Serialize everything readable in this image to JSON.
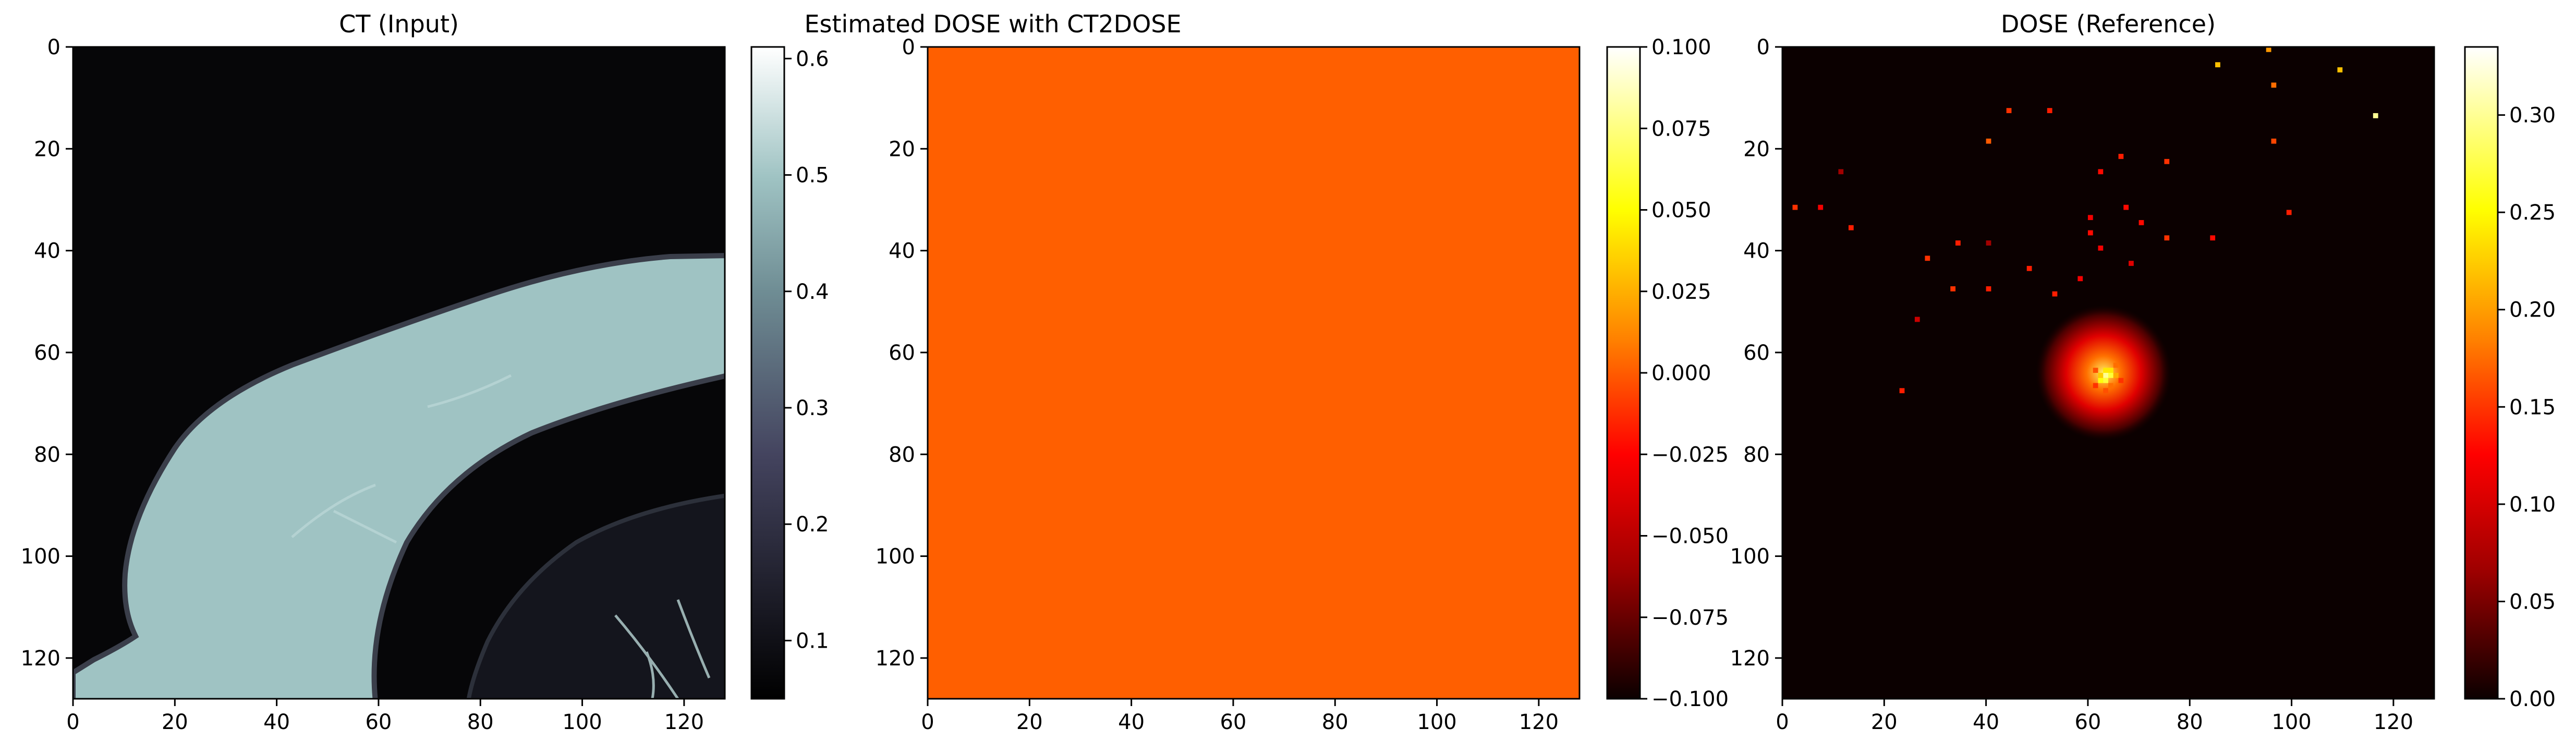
{
  "chart_data": [
    {
      "type": "heatmap",
      "title": "CT (Input)",
      "xlabel": "",
      "ylabel": "",
      "xlim": [
        0,
        128
      ],
      "ylim": [
        128,
        0
      ],
      "x_ticks": [
        0,
        20,
        40,
        60,
        80,
        100,
        120
      ],
      "y_ticks": [
        0,
        20,
        40,
        60,
        80,
        100,
        120
      ],
      "colormap": "bone",
      "grid": false,
      "colorbar": {
        "range": [
          0.05,
          0.61
        ],
        "ticks": [
          0.1,
          0.2,
          0.3,
          0.4,
          0.5,
          0.6
        ],
        "tick_labels": [
          "0.1",
          "0.2",
          "0.3",
          "0.4",
          "0.5",
          "0.6"
        ],
        "colors": [
          "#000000",
          "#44445f",
          "#6f8d94",
          "#9fc3c3",
          "#ffffff"
        ]
      },
      "background_value": 0.06,
      "tissue_value": 0.5,
      "lung_value": 0.1
    },
    {
      "type": "heatmap",
      "title": "Estimated DOSE with CT2DOSE",
      "xlabel": "",
      "ylabel": "",
      "xlim": [
        0,
        128
      ],
      "ylim": [
        128,
        0
      ],
      "x_ticks": [
        0,
        20,
        40,
        60,
        80,
        100,
        120
      ],
      "y_ticks": [
        0,
        20,
        40,
        60,
        80,
        100,
        120
      ],
      "colormap": "hot",
      "grid": false,
      "uniform_value": 0.0,
      "fill_color": "#ff5f00",
      "colorbar": {
        "range": [
          -0.1,
          0.1
        ],
        "ticks": [
          -0.1,
          -0.075,
          -0.05,
          -0.025,
          0.0,
          0.025,
          0.05,
          0.075,
          0.1
        ],
        "tick_labels": [
          "−0.100",
          "−0.075",
          "−0.050",
          "−0.025",
          "0.000",
          "0.025",
          "0.050",
          "0.075",
          "0.100"
        ],
        "colors": [
          "#000000",
          "#a00000",
          "#ff0000",
          "#ff8000",
          "#ffff00",
          "#ffffff"
        ]
      }
    },
    {
      "type": "heatmap",
      "title": "DOSE (Reference)",
      "xlabel": "",
      "ylabel": "",
      "xlim": [
        0,
        128
      ],
      "ylim": [
        128,
        0
      ],
      "x_ticks": [
        0,
        20,
        40,
        60,
        80,
        100,
        120
      ],
      "y_ticks": [
        0,
        20,
        40,
        60,
        80,
        100,
        120
      ],
      "colormap": "hot",
      "grid": false,
      "background_value": 0.002,
      "hotspot": {
        "x": 63,
        "y": 64,
        "peak": 0.3
      },
      "scatter_points": [
        {
          "x": 85,
          "y": 3,
          "v": 0.22
        },
        {
          "x": 95,
          "y": 0,
          "v": 0.2
        },
        {
          "x": 109,
          "y": 4,
          "v": 0.22
        },
        {
          "x": 96,
          "y": 7,
          "v": 0.18
        },
        {
          "x": 116,
          "y": 13,
          "v": 0.3
        },
        {
          "x": 44,
          "y": 12,
          "v": 0.15
        },
        {
          "x": 52,
          "y": 12,
          "v": 0.14
        },
        {
          "x": 40,
          "y": 18,
          "v": 0.17
        },
        {
          "x": 96,
          "y": 18,
          "v": 0.16
        },
        {
          "x": 66,
          "y": 21,
          "v": 0.14
        },
        {
          "x": 75,
          "y": 22,
          "v": 0.15
        },
        {
          "x": 62,
          "y": 24,
          "v": 0.13
        },
        {
          "x": 2,
          "y": 31,
          "v": 0.15
        },
        {
          "x": 7,
          "y": 31,
          "v": 0.12
        },
        {
          "x": 11,
          "y": 24,
          "v": 0.08
        },
        {
          "x": 67,
          "y": 31,
          "v": 0.13
        },
        {
          "x": 60,
          "y": 33,
          "v": 0.12
        },
        {
          "x": 99,
          "y": 32,
          "v": 0.14
        },
        {
          "x": 13,
          "y": 35,
          "v": 0.14
        },
        {
          "x": 70,
          "y": 34,
          "v": 0.13
        },
        {
          "x": 60,
          "y": 36,
          "v": 0.13
        },
        {
          "x": 75,
          "y": 37,
          "v": 0.15
        },
        {
          "x": 84,
          "y": 37,
          "v": 0.13
        },
        {
          "x": 34,
          "y": 38,
          "v": 0.14
        },
        {
          "x": 40,
          "y": 38,
          "v": 0.08
        },
        {
          "x": 62,
          "y": 39,
          "v": 0.12
        },
        {
          "x": 28,
          "y": 41,
          "v": 0.15
        },
        {
          "x": 68,
          "y": 42,
          "v": 0.11
        },
        {
          "x": 48,
          "y": 43,
          "v": 0.14
        },
        {
          "x": 58,
          "y": 45,
          "v": 0.12
        },
        {
          "x": 33,
          "y": 47,
          "v": 0.15
        },
        {
          "x": 40,
          "y": 47,
          "v": 0.14
        },
        {
          "x": 53,
          "y": 48,
          "v": 0.14
        },
        {
          "x": 26,
          "y": 53,
          "v": 0.1
        },
        {
          "x": 23,
          "y": 67,
          "v": 0.14
        }
      ],
      "colorbar": {
        "range": [
          0.0,
          0.335
        ],
        "ticks": [
          0.0,
          0.05,
          0.1,
          0.15,
          0.2,
          0.25,
          0.3
        ],
        "tick_labels": [
          "0.00",
          "0.05",
          "0.10",
          "0.15",
          "0.20",
          "0.25",
          "0.30"
        ],
        "colors": [
          "#000000",
          "#a00000",
          "#ff0000",
          "#ff8000",
          "#ffff00",
          "#ffffff"
        ]
      }
    }
  ]
}
